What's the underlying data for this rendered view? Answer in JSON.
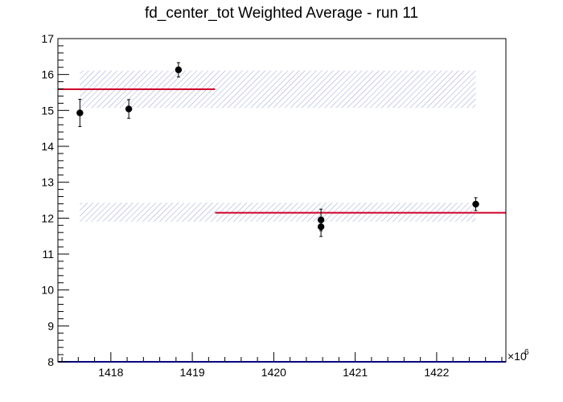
{
  "chart_data": {
    "type": "scatter",
    "title": "fd_center_tot Weighted Average - run 11",
    "xlabel": "",
    "ylabel": "",
    "x_multiplier_label": "×10",
    "x_multiplier_exponent": "6",
    "xlim": [
      1417.35,
      1422.85
    ],
    "ylim": [
      8,
      17
    ],
    "x_ticks": [
      1418,
      1419,
      1420,
      1421,
      1422
    ],
    "y_ticks": [
      8,
      9,
      10,
      11,
      12,
      13,
      14,
      15,
      16,
      17
    ],
    "x_tick_labels": [
      "1418",
      "1419",
      "1420",
      "1421",
      "1422"
    ],
    "y_tick_labels": [
      "8",
      "9",
      "10",
      "11",
      "12",
      "13",
      "14",
      "15",
      "16",
      "17"
    ],
    "grid": false,
    "legend": "none",
    "series": [
      {
        "points": [
          {
            "x": 1417.62,
            "y": 14.93,
            "err": 0.38
          },
          {
            "x": 1418.22,
            "y": 15.04,
            "err": 0.26
          },
          {
            "x": 1418.83,
            "y": 16.13,
            "err": 0.2
          },
          {
            "x": 1420.58,
            "y": 11.95,
            "err": 0.3
          },
          {
            "x": 1420.58,
            "y": 11.76,
            "err": 0.27
          },
          {
            "x": 1422.48,
            "y": 12.39,
            "err": 0.18
          }
        ]
      }
    ],
    "weighted_averages": [
      {
        "x_start": 1417.35,
        "x_end": 1419.28,
        "y": 15.59
      },
      {
        "x_start": 1419.28,
        "x_end": 1422.85,
        "y": 12.15
      }
    ],
    "uncertainty_bands": [
      {
        "x_start": 1417.62,
        "x_end": 1422.48,
        "y_low": 15.07,
        "y_high": 16.11
      },
      {
        "x_start": 1417.62,
        "x_end": 1422.48,
        "y_low": 11.9,
        "y_high": 12.43
      }
    ],
    "colors": {
      "points": "#000000",
      "average_line": "#d0002a",
      "band": "#9aa2d8",
      "axis": "#000000",
      "baseline": "#000080"
    }
  }
}
